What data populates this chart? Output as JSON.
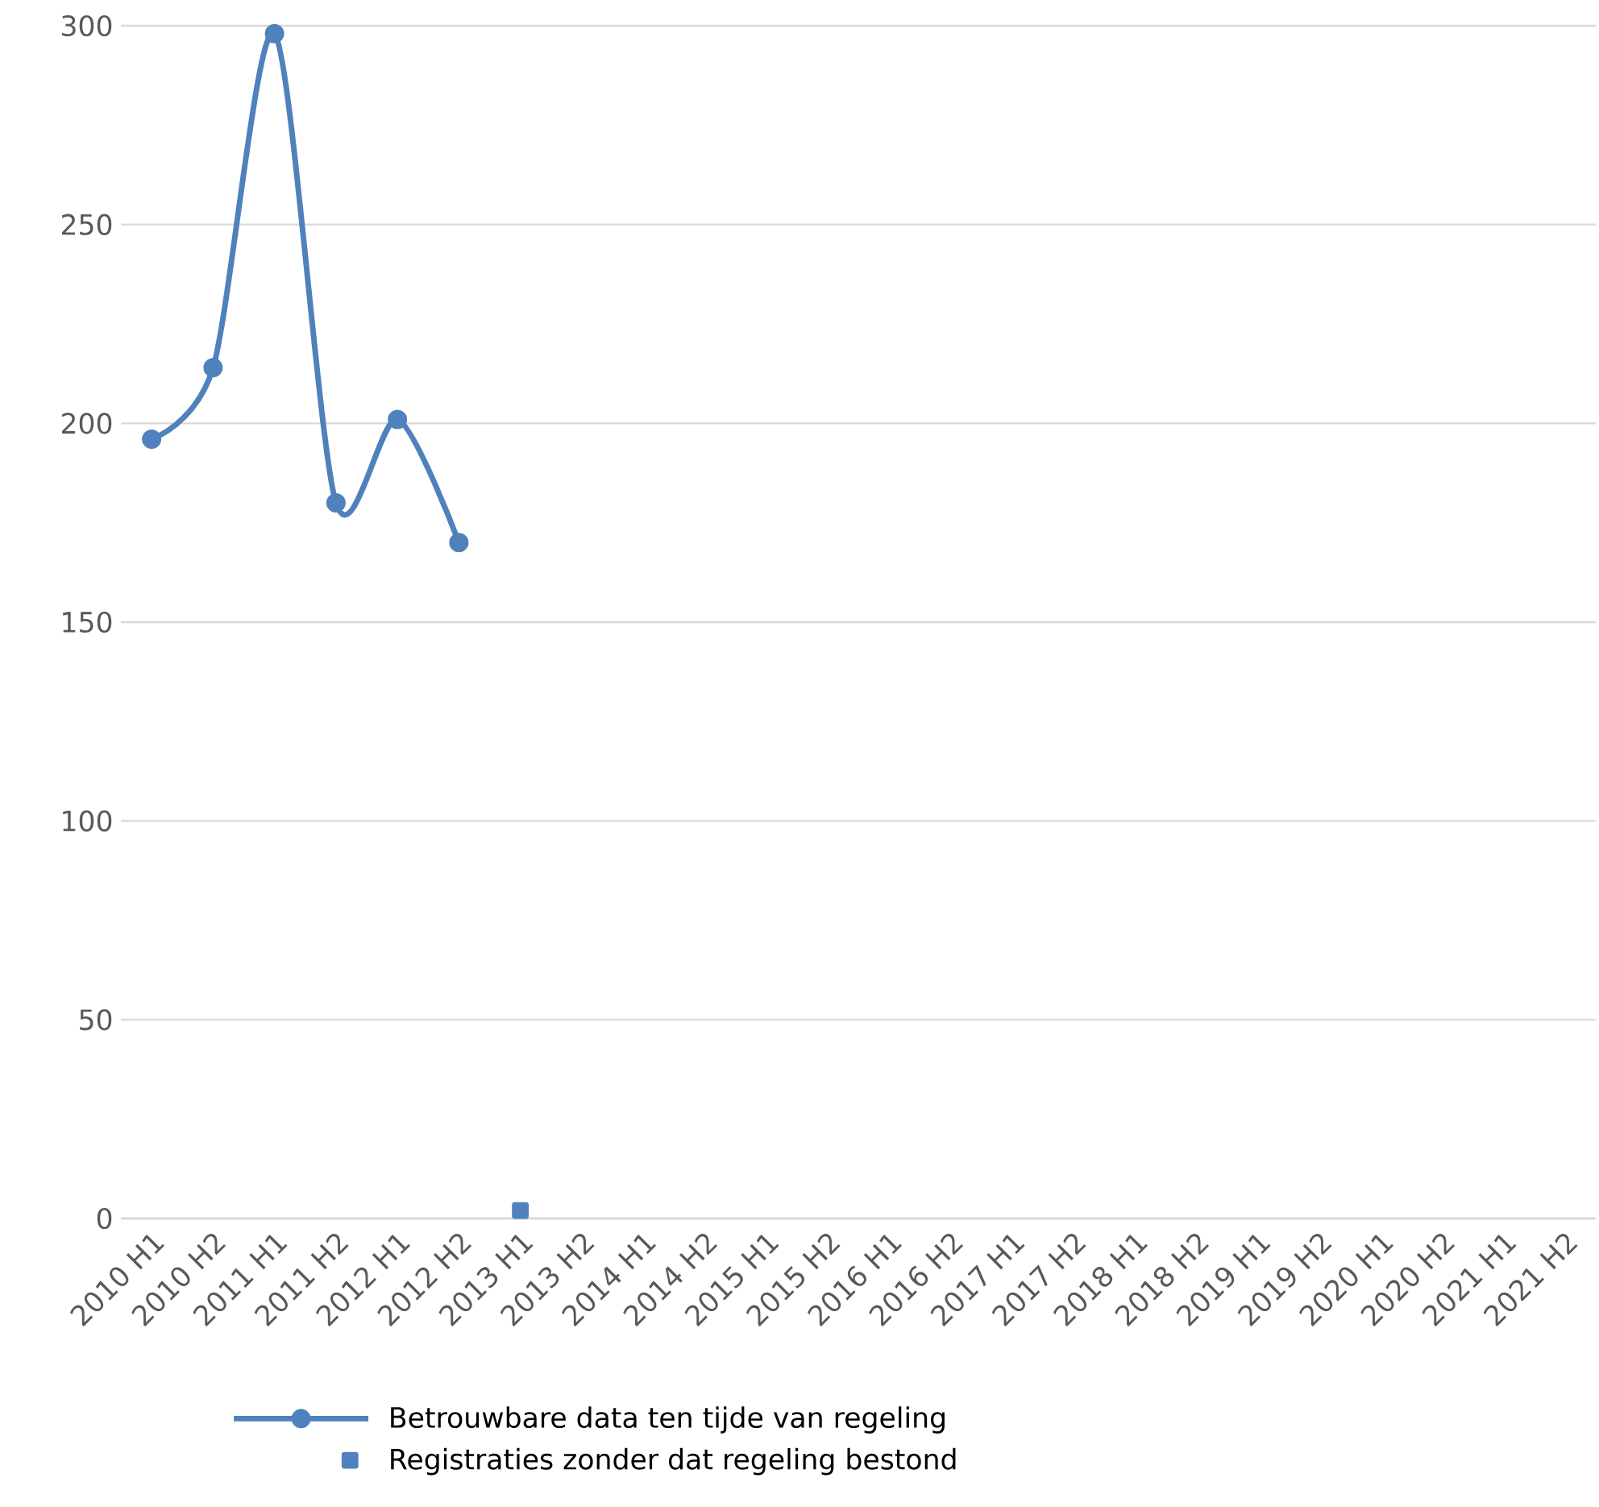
{
  "chart_data": {
    "type": "line",
    "categories": [
      "2010 H1",
      "2010 H2",
      "2011 H1",
      "2011 H2",
      "2012 H1",
      "2012 H2",
      "2013 H1",
      "2013 H2",
      "2014 H1",
      "2014 H2",
      "2015 H1",
      "2015 H2",
      "2016 H1",
      "2016 H2",
      "2017 H1",
      "2017 H2",
      "2018 H1",
      "2018 H2",
      "2019 H1",
      "2019 H2",
      "2020 H1",
      "2020 H2",
      "2021 H1",
      "2021 H2"
    ],
    "series": [
      {
        "name": "Betrouwbare data ten tijde van regeling",
        "color": "#4f81bd",
        "marker": "circle",
        "values": [
          196,
          214,
          298,
          180,
          201,
          170,
          null,
          null,
          null,
          null,
          null,
          null,
          null,
          null,
          null,
          null,
          null,
          null,
          null,
          null,
          null,
          null,
          null,
          null
        ]
      },
      {
        "name": "Registraties zonder dat regeling bestond",
        "color": "#4f81bd",
        "marker": "square",
        "values": [
          null,
          null,
          null,
          null,
          null,
          null,
          2,
          null,
          null,
          null,
          null,
          null,
          null,
          null,
          null,
          null,
          null,
          null,
          null,
          null,
          null,
          null,
          null,
          null
        ]
      }
    ],
    "ylim": [
      0,
      300
    ],
    "yticks": [
      0,
      50,
      100,
      150,
      200,
      250,
      300
    ],
    "grid": "y",
    "legend": "bottom",
    "line_style": "solid"
  }
}
